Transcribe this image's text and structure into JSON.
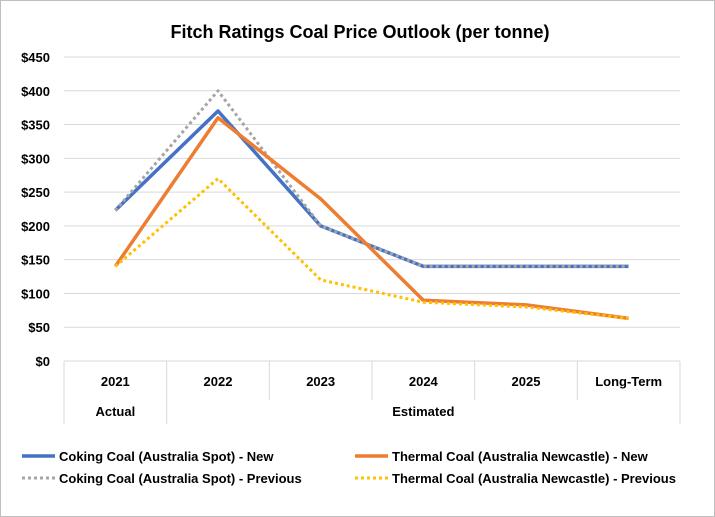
{
  "chart_data": {
    "type": "line",
    "title": "Fitch Ratings Coal Price Outlook (per tonne)",
    "categories": [
      "2021",
      "2022",
      "2023",
      "2024",
      "2025",
      "Long-Term"
    ],
    "groups": [
      {
        "label": "Actual",
        "span": [
          0,
          0
        ]
      },
      {
        "label": "Estimated",
        "span": [
          1,
          5
        ]
      }
    ],
    "ylim": [
      0,
      450
    ],
    "yticks": [
      0,
      50,
      100,
      150,
      200,
      250,
      300,
      350,
      400,
      450
    ],
    "ytick_labels": [
      "$0",
      "$50",
      "$100",
      "$150",
      "$200",
      "$250",
      "$300",
      "$350",
      "$400",
      "$450"
    ],
    "grid": true,
    "legend_position": "bottom",
    "series": [
      {
        "name": "Coking Coal (Australia Spot) - New",
        "values": [
          223,
          370,
          200,
          140,
          140,
          140
        ],
        "color": "#4472C4",
        "style": "solid"
      },
      {
        "name": "Coking Coal (Australia Spot) - Previous",
        "values": [
          223,
          400,
          200,
          140,
          140,
          140
        ],
        "color": "#A5A5A5",
        "style": "dotted"
      },
      {
        "name": "Thermal Coal (Australia Newcastle) - New",
        "values": [
          140,
          360,
          240,
          90,
          83,
          63
        ],
        "color": "#ED7D31",
        "style": "solid"
      },
      {
        "name": "Thermal Coal (Australia Newcastle) - Previous",
        "values": [
          140,
          270,
          120,
          87,
          80,
          63
        ],
        "color": "#FFC000",
        "style": "dotted"
      }
    ]
  }
}
